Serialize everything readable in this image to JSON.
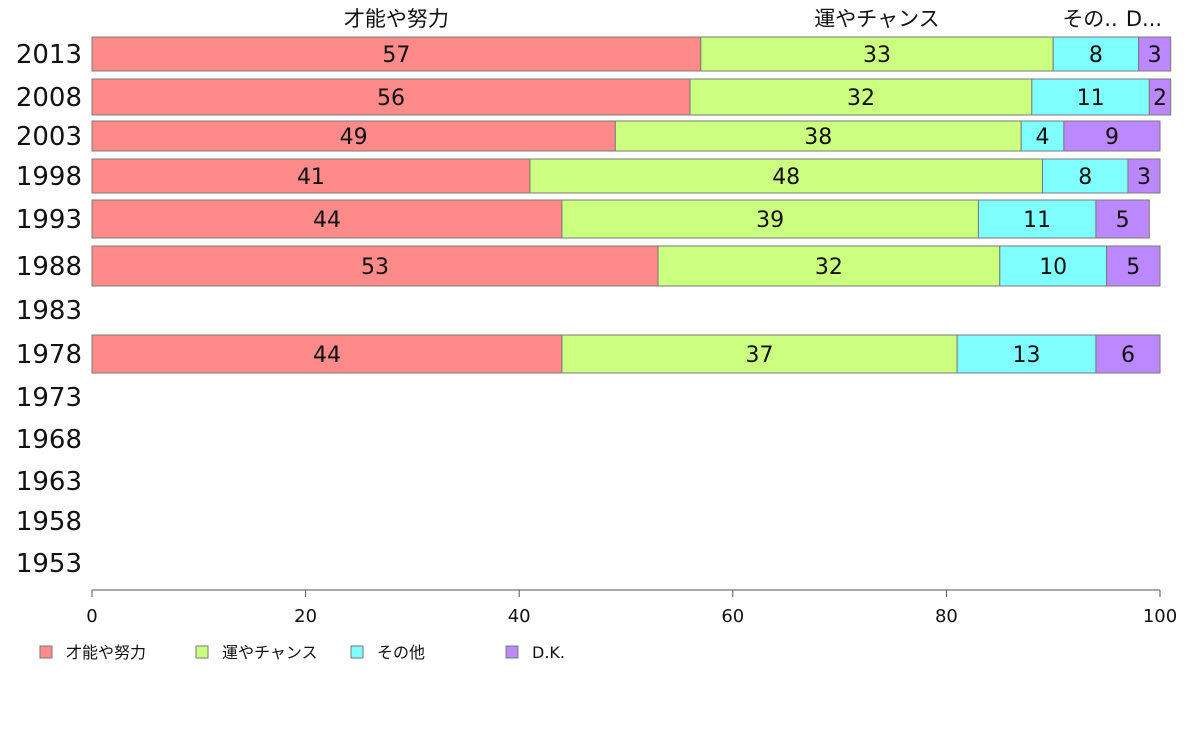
{
  "chart_data": {
    "type": "bar",
    "orientation": "horizontal",
    "stacked": true,
    "categories": [
      "2013",
      "2008",
      "2003",
      "1998",
      "1993",
      "1988",
      "1983",
      "1978",
      "1973",
      "1968",
      "1963",
      "1958",
      "1953"
    ],
    "series": [
      {
        "name": "才能や努力",
        "color": "#ff8a8a",
        "values": [
          57,
          56,
          49,
          41,
          44,
          53,
          null,
          44,
          null,
          null,
          null,
          null,
          null
        ]
      },
      {
        "name": "運やチャンス",
        "color": "#ccff80",
        "values": [
          33,
          32,
          38,
          48,
          39,
          32,
          null,
          37,
          null,
          null,
          null,
          null,
          null
        ]
      },
      {
        "name": "その他",
        "color": "#80ffff",
        "values": [
          8,
          11,
          4,
          8,
          11,
          10,
          null,
          13,
          null,
          null,
          null,
          null,
          null
        ]
      },
      {
        "name": "D.K.",
        "color": "#bb88ff",
        "values": [
          3,
          2,
          9,
          3,
          5,
          5,
          null,
          6,
          null,
          null,
          null,
          null,
          null
        ]
      }
    ],
    "top_labels": [
      "才能や努力",
      "運やチャンス",
      "その..",
      "D..."
    ],
    "xlim": [
      0,
      100
    ],
    "xticks": [
      0,
      20,
      40,
      60,
      80,
      100
    ],
    "grid": false,
    "legend_position": "bottom-left"
  }
}
